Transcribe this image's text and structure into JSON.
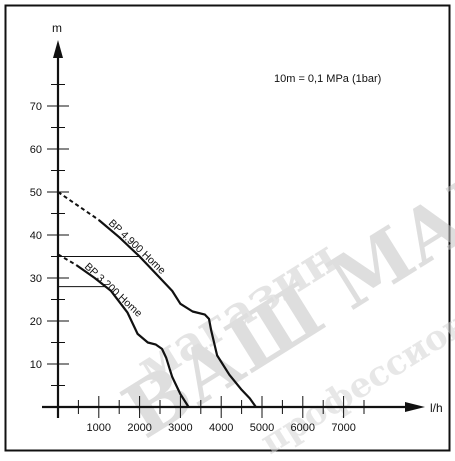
{
  "chart_data": {
    "type": "line",
    "xlabel": "l/h",
    "ylabel": "m",
    "note": "10m = 0,1 MPa (1bar)",
    "xlim": [
      -600,
      8100
    ],
    "ylim": [
      0,
      80
    ],
    "x_ticks": [
      1000,
      2000,
      3000,
      4000,
      5000,
      6000,
      7000
    ],
    "x_minor_step": 500,
    "y_ticks": [
      10,
      20,
      30,
      40,
      50,
      60,
      70
    ],
    "y_minor_step": 5,
    "grid": false,
    "series": [
      {
        "name": "BP 4.900 Home",
        "dashed_part": {
          "x": [
            0,
            1000
          ],
          "y": [
            50,
            43.5
          ]
        },
        "reference_y": 35,
        "x": [
          1000,
          1500,
          2000,
          2500,
          2800,
          3000,
          3300,
          3600,
          3700,
          3750,
          3900,
          4200,
          4500,
          4700,
          4850
        ],
        "y": [
          43.5,
          39.5,
          35,
          30,
          27,
          24,
          22.2,
          21.5,
          20.5,
          18,
          12,
          7.5,
          4,
          2,
          0
        ],
        "color": "#111111"
      },
      {
        "name": "BP 3.200 Home",
        "dashed_part": {
          "x": [
            0,
            450
          ],
          "y": [
            35.5,
            33
          ]
        },
        "reference_y": 28,
        "x": [
          450,
          900,
          1300,
          1700,
          1950,
          2200,
          2400,
          2550,
          2650,
          2800,
          3000,
          3200
        ],
        "y": [
          33,
          30,
          27,
          22,
          17,
          15,
          14.5,
          13.5,
          11.5,
          7,
          3,
          0
        ],
        "color": "#111111"
      }
    ]
  },
  "watermark": {
    "line1": "магазин",
    "line2": "ВАШ МАГАЗИН",
    "line3": "профессионал"
  }
}
